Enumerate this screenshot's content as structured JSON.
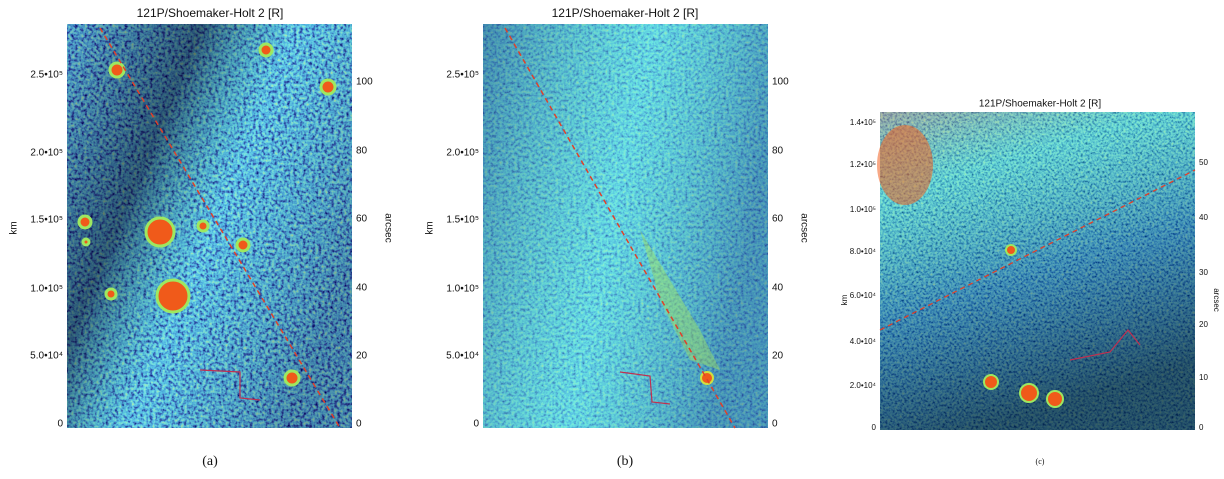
{
  "panels": [
    {
      "title": "121P/Shoemaker-Holt 2 [R]",
      "left_label": "km",
      "right_label": "arcsec",
      "caption": "(a)",
      "left_ticks": [
        "2.5•10⁵",
        "2.0•10⁵",
        "1.5•10⁵",
        "1.0•10⁵",
        "5.0•10⁴",
        "0"
      ],
      "right_ticks": [
        "100",
        "80",
        "60",
        "40",
        "20",
        "0"
      ]
    },
    {
      "title": "121P/Shoemaker-Holt 2 [R]",
      "left_label": "km",
      "right_label": "arcsec",
      "caption": "(b)",
      "left_ticks": [
        "2.5•10⁵",
        "2.0•10⁵",
        "1.5•10⁵",
        "1.0•10⁵",
        "5.0•10⁴",
        "0"
      ],
      "right_ticks": [
        "100",
        "80",
        "60",
        "40",
        "20",
        "0"
      ]
    },
    {
      "title": "121P/Shoemaker-Holt 2 [R]",
      "left_label": "km",
      "right_label": "arcsec",
      "caption": "(c)",
      "left_ticks": [
        "1.4•10⁵",
        "1.2•10⁵",
        "1.0•10⁵",
        "8.0•10⁴",
        "6.0•10⁴",
        "4.0•10⁴",
        "2.0•10⁴",
        "0"
      ],
      "right_ticks": [
        "50",
        "40",
        "30",
        "20",
        "10",
        "0"
      ]
    }
  ]
}
